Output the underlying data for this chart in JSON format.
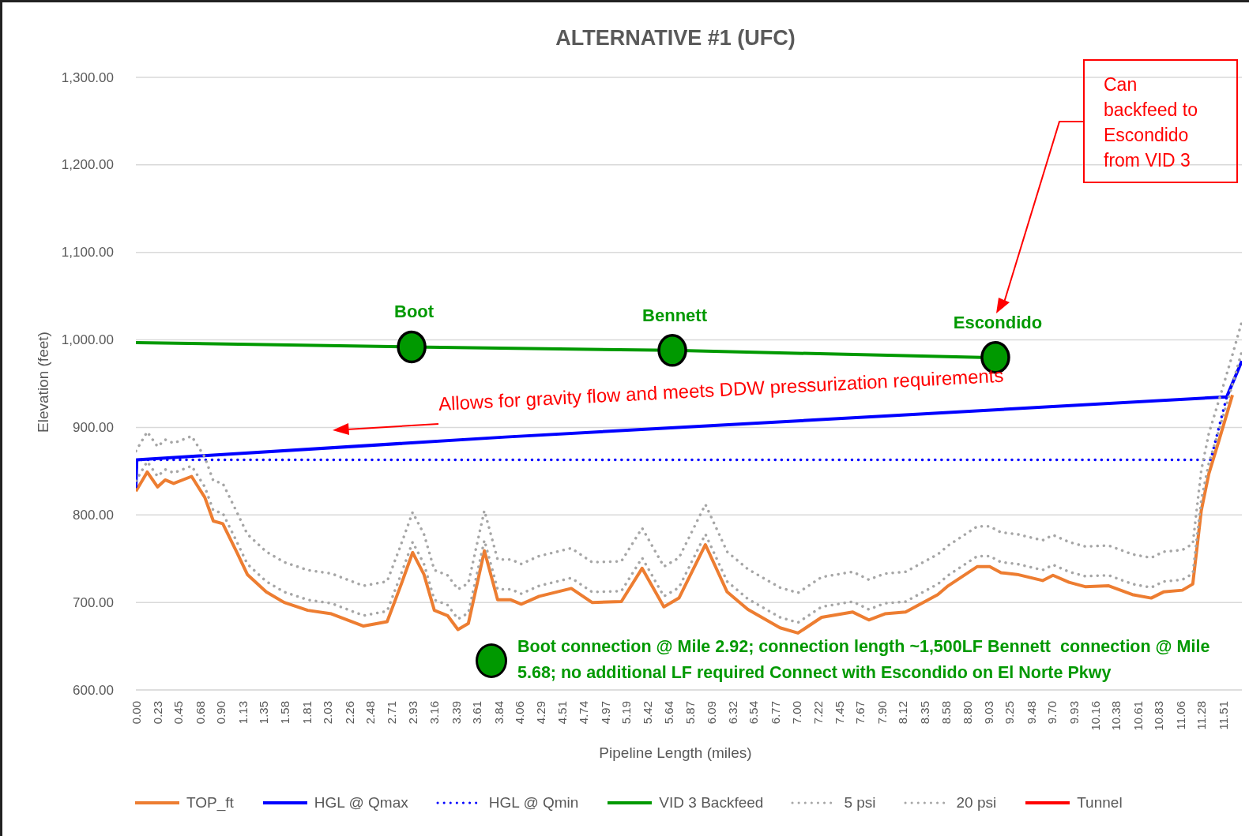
{
  "chart_data": {
    "type": "line",
    "title": "ALTERNATIVE #1 (UFC)",
    "xlabel": "Pipeline Length (miles)",
    "ylabel": "Elevation (feet)",
    "xlim": [
      0,
      11.71
    ],
    "ylim": [
      600,
      1300
    ],
    "yticks": [
      {
        "value": 600,
        "label": "600.00"
      },
      {
        "value": 700,
        "label": "700.00"
      },
      {
        "value": 800,
        "label": "800.00"
      },
      {
        "value": 900,
        "label": "900.00"
      },
      {
        "value": 1000,
        "label": "1,000.00"
      },
      {
        "value": 1100,
        "label": "1,100.00"
      },
      {
        "value": 1200,
        "label": "1,200.00"
      },
      {
        "value": 1300,
        "label": "1,300.00"
      }
    ],
    "xticks": [
      {
        "value": 0,
        "label": "0.00"
      },
      {
        "value": 0.23,
        "label": "0.23"
      },
      {
        "value": 0.45,
        "label": "0.45"
      },
      {
        "value": 0.68,
        "label": "0.68"
      },
      {
        "value": 0.9,
        "label": "0.90"
      },
      {
        "value": 1.13,
        "label": "1.13"
      },
      {
        "value": 1.35,
        "label": "1.35"
      },
      {
        "value": 1.58,
        "label": "1.58"
      },
      {
        "value": 1.81,
        "label": "1.81"
      },
      {
        "value": 2.03,
        "label": "2.03"
      },
      {
        "value": 2.26,
        "label": "2.26"
      },
      {
        "value": 2.48,
        "label": "2.48"
      },
      {
        "value": 2.71,
        "label": "2.71"
      },
      {
        "value": 2.93,
        "label": "2.93"
      },
      {
        "value": 3.16,
        "label": "3.16"
      },
      {
        "value": 3.39,
        "label": "3.39"
      },
      {
        "value": 3.61,
        "label": "3.61"
      },
      {
        "value": 3.84,
        "label": "3.84"
      },
      {
        "value": 4.06,
        "label": "4.06"
      },
      {
        "value": 4.29,
        "label": "4.29"
      },
      {
        "value": 4.51,
        "label": "4.51"
      },
      {
        "value": 4.74,
        "label": "4.74"
      },
      {
        "value": 4.97,
        "label": "4.97"
      },
      {
        "value": 5.19,
        "label": "5.19"
      },
      {
        "value": 5.42,
        "label": "5.42"
      },
      {
        "value": 5.64,
        "label": "5.64"
      },
      {
        "value": 5.87,
        "label": "5.87"
      },
      {
        "value": 6.09,
        "label": "6.09"
      },
      {
        "value": 6.32,
        "label": "6.32"
      },
      {
        "value": 6.54,
        "label": "6.54"
      },
      {
        "value": 6.77,
        "label": "6.77"
      },
      {
        "value": 7,
        "label": "7.00"
      },
      {
        "value": 7.22,
        "label": "7.22"
      },
      {
        "value": 7.45,
        "label": "7.45"
      },
      {
        "value": 7.67,
        "label": "7.67"
      },
      {
        "value": 7.9,
        "label": "7.90"
      },
      {
        "value": 8.12,
        "label": "8.12"
      },
      {
        "value": 8.35,
        "label": "8.35"
      },
      {
        "value": 8.58,
        "label": "8.58"
      },
      {
        "value": 8.8,
        "label": "8.80"
      },
      {
        "value": 9.03,
        "label": "9.03"
      },
      {
        "value": 9.25,
        "label": "9.25"
      },
      {
        "value": 9.48,
        "label": "9.48"
      },
      {
        "value": 9.7,
        "label": "9.70"
      },
      {
        "value": 9.93,
        "label": "9.93"
      },
      {
        "value": 10.16,
        "label": "10.16"
      },
      {
        "value": 10.38,
        "label": "10.38"
      },
      {
        "value": 10.61,
        "label": "10.61"
      },
      {
        "value": 10.83,
        "label": "10.83"
      },
      {
        "value": 11.06,
        "label": "11.06"
      },
      {
        "value": 11.28,
        "label": "11.28"
      },
      {
        "value": 11.51,
        "label": "11.51"
      }
    ],
    "grid": "y",
    "legend": "bottom",
    "marker": "none",
    "x": [
      0,
      0.12,
      0.23,
      0.31,
      0.4,
      0.59,
      0.73,
      0.82,
      0.92,
      1.07,
      1.18,
      1.38,
      1.57,
      1.82,
      2.07,
      2.41,
      2.66,
      2.81,
      2.93,
      3.05,
      3.16,
      3.3,
      3.41,
      3.52,
      3.69,
      3.83,
      3.97,
      4.08,
      4.27,
      4.61,
      4.83,
      5.14,
      5.36,
      5.59,
      5.75,
      6.03,
      6.26,
      6.48,
      6.82,
      7.01,
      7.26,
      7.59,
      7.76,
      7.93,
      8.15,
      8.49,
      8.6,
      8.91,
      9.04,
      9.16,
      9.33,
      9.6,
      9.71,
      9.88,
      10.05,
      10.3,
      10.55,
      10.75,
      10.88,
      11.08,
      11.19,
      11.28,
      11.36,
      11.47,
      11.61,
      11.71
    ],
    "series": [
      {
        "name": "TOP_ft",
        "color": "#ed7d31",
        "line_style": "solid",
        "values": [
          827,
          849,
          832,
          840,
          836,
          844,
          820,
          793,
          790,
          757,
          732,
          712,
          700,
          691,
          687,
          673,
          678,
          721,
          757,
          732,
          691,
          685,
          669,
          676,
          759,
          703,
          703,
          698,
          707,
          716,
          700,
          701,
          739,
          695,
          705,
          766,
          712,
          692,
          671,
          665,
          683,
          689,
          680,
          687,
          689,
          709,
          719,
          741,
          741,
          734,
          732,
          725,
          731,
          723,
          718,
          719,
          709,
          705,
          712,
          714,
          721,
          805,
          847,
          886,
          937,
          null
        ]
      },
      {
        "name": "HGL @ Qmax",
        "color": "#0000ff",
        "line_style": "solid",
        "x": [
          0,
          0.01,
          3.91,
          7.93,
          11.55,
          11.71
        ],
        "values": [
          832,
          863,
          889,
          913,
          935,
          976
        ]
      },
      {
        "name": "HGL @ Qmin",
        "color": "#0000ff",
        "line_style": "dotted",
        "x": [
          0,
          0.01,
          11.38,
          11.55
        ],
        "values": [
          832,
          863,
          863,
          935
        ]
      },
      {
        "name": "VID 3 Backfeed",
        "color": "#009900",
        "line_style": "solid",
        "x": [
          0,
          2.92,
          5.68,
          8.95
        ],
        "values": [
          997,
          992,
          988,
          980
        ]
      },
      {
        "name": "5 psi",
        "color": "#a6a6a6",
        "line_style": "dotted",
        "values": [
          839,
          861,
          844,
          852,
          848,
          856,
          832,
          805,
          802,
          769,
          744,
          724,
          712,
          703,
          699,
          685,
          690,
          733,
          769,
          744,
          703,
          697,
          681,
          688,
          771,
          715,
          715,
          710,
          719,
          728,
          712,
          713,
          751,
          707,
          717,
          778,
          724,
          704,
          683,
          677,
          695,
          701,
          692,
          699,
          701,
          721,
          731,
          753,
          753,
          746,
          744,
          737,
          743,
          735,
          730,
          731,
          721,
          717,
          724,
          726,
          733,
          817,
          859,
          898,
          949,
          987
        ]
      },
      {
        "name": "20 psi",
        "color": "#a6a6a6",
        "line_style": "dotted",
        "values": [
          873,
          895,
          878,
          886,
          882,
          890,
          866,
          839,
          836,
          803,
          778,
          758,
          746,
          737,
          733,
          719,
          724,
          767,
          803,
          778,
          737,
          731,
          715,
          722,
          805,
          749,
          749,
          744,
          753,
          762,
          746,
          747,
          785,
          741,
          751,
          812,
          758,
          738,
          717,
          711,
          729,
          735,
          726,
          733,
          735,
          755,
          765,
          787,
          787,
          780,
          778,
          771,
          777,
          769,
          764,
          765,
          755,
          751,
          758,
          760,
          767,
          851,
          893,
          932,
          983,
          1021
        ]
      },
      {
        "name": "Tunnel",
        "color": "#ff0000",
        "line_style": "solid",
        "values": [
          null,
          null,
          null,
          null,
          null,
          null,
          null,
          null,
          null,
          null,
          null,
          null,
          null,
          null,
          null,
          null,
          null,
          null,
          null,
          null,
          null,
          null,
          null,
          null,
          null,
          null,
          null,
          null,
          null,
          null,
          null,
          null,
          null,
          null,
          null,
          null,
          null,
          null,
          null,
          null,
          null,
          null,
          null,
          null,
          null,
          null,
          null,
          null,
          null,
          null,
          null,
          null,
          null,
          null,
          null,
          null,
          null,
          null,
          null,
          null,
          null,
          null,
          null,
          null,
          null,
          null
        ]
      },
      {
        "type": "scatter",
        "color": "#009900",
        "marker": "circle",
        "x": [
          2.92,
          5.68,
          9.1
        ],
        "values": [
          992,
          988,
          980
        ]
      }
    ],
    "annotations": [
      {
        "text": "Boot",
        "x": 2.92,
        "y": 992
      },
      {
        "text": "Bennett",
        "x": 5.68,
        "y": 988
      },
      {
        "text": "Escondido",
        "x": 9.1,
        "y": 980
      },
      "Can backfeed to Escondido from VID 3",
      "Allows for gravity flow and meets DDW pressurization requirements",
      "Boot connection @ Mile 2.92; connection length ~1,500LF Bennett  connection @ Mile 5.68; no additional LF required Connect with Escondido on El Norte Pkwy"
    ]
  }
}
